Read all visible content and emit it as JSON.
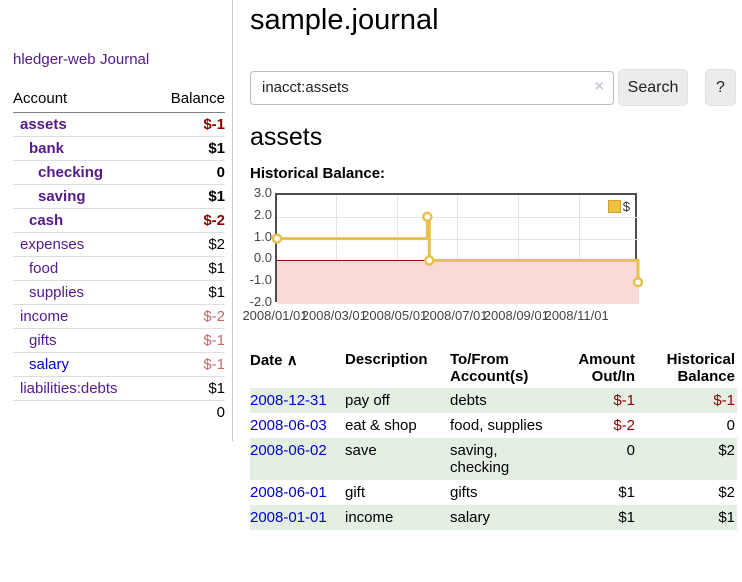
{
  "app": {
    "title": "hledger-web"
  },
  "colors": {
    "link_purple": "#551a8b",
    "link_blue": "#0000cc",
    "negative_dark": "#8b0000",
    "negative_light": "#c26b6b",
    "row_stripe_green": "#e3efe3",
    "chart_line_gold": "#e7c050",
    "chart_negative_pink": "#fad9d9",
    "chart_zero_line": "#9c0000"
  },
  "sidebar": {
    "journal_link": "Journal",
    "accounts_table": {
      "headers": {
        "account": "Account",
        "balance": "Balance"
      },
      "rows": [
        {
          "name": "assets",
          "balance": "$-1",
          "depth": 1,
          "bold": true
        },
        {
          "name": "bank",
          "balance": "$1",
          "depth": 2,
          "bold": true
        },
        {
          "name": "checking",
          "balance": "0",
          "depth": 3,
          "bold": true
        },
        {
          "name": "saving",
          "balance": "$1",
          "depth": 3,
          "bold": true
        },
        {
          "name": "cash",
          "balance": "$-2",
          "depth": 2,
          "bold": true
        },
        {
          "name": "expenses",
          "balance": "$2",
          "depth": 1,
          "bold": false
        },
        {
          "name": "food",
          "balance": "$1",
          "depth": 2,
          "bold": false
        },
        {
          "name": "supplies",
          "balance": "$1",
          "depth": 2,
          "bold": false
        },
        {
          "name": "income",
          "balance": "$-2",
          "depth": 1,
          "bold": false
        },
        {
          "name": "gifts",
          "balance": "$-1",
          "depth": 2,
          "bold": false
        },
        {
          "name": "salary",
          "balance": "$-1",
          "depth": 2,
          "bold": false,
          "unvisited": true
        },
        {
          "name": "liabilities:debts",
          "balance": "$1",
          "depth": 1,
          "bold": false
        }
      ],
      "total": "0"
    }
  },
  "header": {
    "title": "sample.journal"
  },
  "search": {
    "value": "inacct:assets",
    "clear_icon": "×",
    "button_label": "Search",
    "help_label": "?"
  },
  "account_page": {
    "heading": "assets",
    "chart_label": "Historical Balance:"
  },
  "chart_data": {
    "type": "line",
    "title": "Historical Balance",
    "legend": [
      {
        "label": "$",
        "color": "#edc240"
      }
    ],
    "legend_position": "top-right",
    "step": true,
    "x_start": "2008-01-01",
    "x_end": "2009-01-01",
    "points": [
      [
        "2008-01-01",
        1
      ],
      [
        "2008-06-01",
        2
      ],
      [
        "2008-06-03",
        0
      ],
      [
        "2008-12-31",
        -1
      ]
    ],
    "ylim": [
      -2,
      3
    ],
    "yticks": [
      3.0,
      2.0,
      1.0,
      0.0,
      -1.0,
      -2.0
    ],
    "ytick_labels": [
      "3.0",
      "2.0",
      "1.0",
      "0.0",
      "-1.0",
      "-2.0"
    ],
    "xtick_labels": [
      "2008/01/01",
      "2008/03/01",
      "2008/05/01",
      "2008/07/01",
      "2008/09/01",
      "2008/11/01"
    ],
    "grid": true,
    "negative_region_shaded": true
  },
  "register_table": {
    "headers": {
      "date": "Date",
      "sort_icon": "∧",
      "description": "Description",
      "accounts": "To/From Account(s)",
      "amount": "Amount Out/In",
      "balance": "Historical Balance"
    },
    "rows": [
      {
        "date": "2008-12-31",
        "description": "pay off",
        "accounts": "debts",
        "amount": "$-1",
        "balance": "$-1"
      },
      {
        "date": "2008-06-03",
        "description": "eat & shop",
        "accounts": "food, supplies",
        "amount": "$-2",
        "balance": "0"
      },
      {
        "date": "2008-06-02",
        "description": "save",
        "accounts": "saving, checking",
        "amount": "0",
        "balance": "$2"
      },
      {
        "date": "2008-06-01",
        "description": "gift",
        "accounts": "gifts",
        "amount": "$1",
        "balance": "$2"
      },
      {
        "date": "2008-01-01",
        "description": "income",
        "accounts": "salary",
        "amount": "$1",
        "balance": "$1"
      }
    ]
  }
}
